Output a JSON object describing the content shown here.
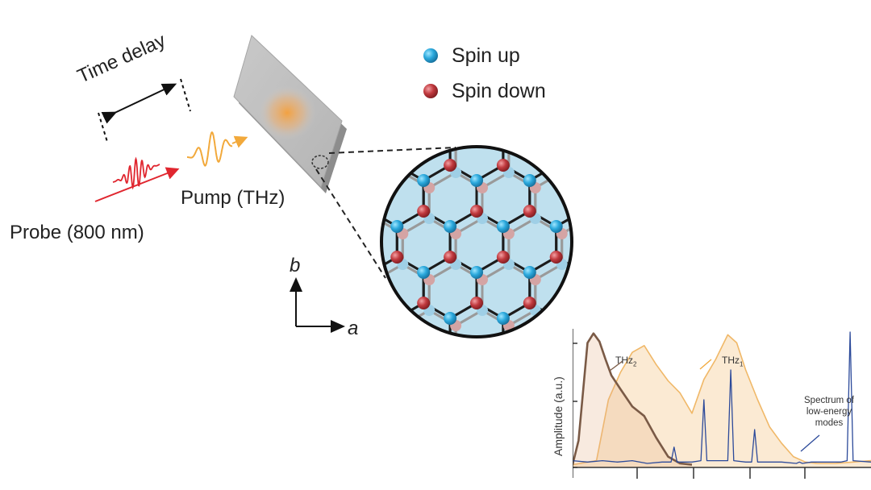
{
  "labels": {
    "time_delay": "Time delay",
    "pump": "Pump (THz)",
    "probe": "Probe (800 nm)",
    "axis_b": "b",
    "axis_a": "a"
  },
  "legend": {
    "spin_up": "Spin up",
    "spin_down": "Spin down"
  },
  "colors": {
    "spin_up": "#2aa8dc",
    "spin_down": "#c0393e",
    "pump_wave": "#f2a93b",
    "probe_wave": "#e0262f",
    "lattice_bg": "#bfe0ee",
    "thz1": "#f0b868",
    "thz2": "#7a5a46",
    "spectrum": "#2c4a9a"
  },
  "chart_data": {
    "type": "line",
    "ylabel": "Amplitude (a.u.)",
    "xlabel": "",
    "xlim": [
      0,
      1
    ],
    "ylim": [
      0,
      1
    ],
    "annotations": {
      "thz2": "THz",
      "thz2_sub": "2",
      "thz1": "THz",
      "thz1_sub": "1",
      "spectrum": "Spectrum of low-energy modes"
    },
    "series": [
      {
        "name": "THz2",
        "x": [
          0.0,
          0.02,
          0.05,
          0.07,
          0.09,
          0.11,
          0.13,
          0.16,
          0.2,
          0.24,
          0.28,
          0.32,
          0.36,
          0.4
        ],
        "values": [
          0.02,
          0.2,
          0.92,
          0.99,
          0.93,
          0.8,
          0.68,
          0.58,
          0.45,
          0.38,
          0.22,
          0.08,
          0.03,
          0.02
        ]
      },
      {
        "name": "THz1",
        "x": [
          0.0,
          0.08,
          0.12,
          0.16,
          0.2,
          0.24,
          0.28,
          0.32,
          0.36,
          0.4,
          0.44,
          0.48,
          0.52,
          0.55,
          0.58,
          0.62,
          0.66,
          0.7,
          0.74,
          0.78,
          0.82,
          0.88,
          0.94,
          1.0
        ],
        "values": [
          0.02,
          0.05,
          0.5,
          0.7,
          0.85,
          0.9,
          0.76,
          0.64,
          0.55,
          0.4,
          0.65,
          0.8,
          0.98,
          0.92,
          0.72,
          0.5,
          0.3,
          0.18,
          0.08,
          0.04,
          0.03,
          0.03,
          0.04,
          0.05
        ]
      },
      {
        "name": "Spectrum of low-energy modes",
        "x": [
          0.0,
          0.05,
          0.1,
          0.15,
          0.2,
          0.25,
          0.3,
          0.33,
          0.34,
          0.35,
          0.4,
          0.43,
          0.44,
          0.45,
          0.5,
          0.52,
          0.53,
          0.54,
          0.58,
          0.6,
          0.61,
          0.62,
          0.7,
          0.75,
          0.76,
          0.77,
          0.8,
          0.85,
          0.9,
          0.92,
          0.93,
          0.94,
          1.0
        ],
        "values": [
          0.05,
          0.04,
          0.05,
          0.04,
          0.05,
          0.03,
          0.04,
          0.04,
          0.15,
          0.04,
          0.04,
          0.05,
          0.5,
          0.05,
          0.05,
          0.05,
          0.72,
          0.05,
          0.04,
          0.04,
          0.28,
          0.04,
          0.04,
          0.03,
          0.04,
          0.03,
          0.04,
          0.04,
          0.04,
          0.05,
          1.0,
          0.05,
          0.04
        ]
      }
    ]
  }
}
